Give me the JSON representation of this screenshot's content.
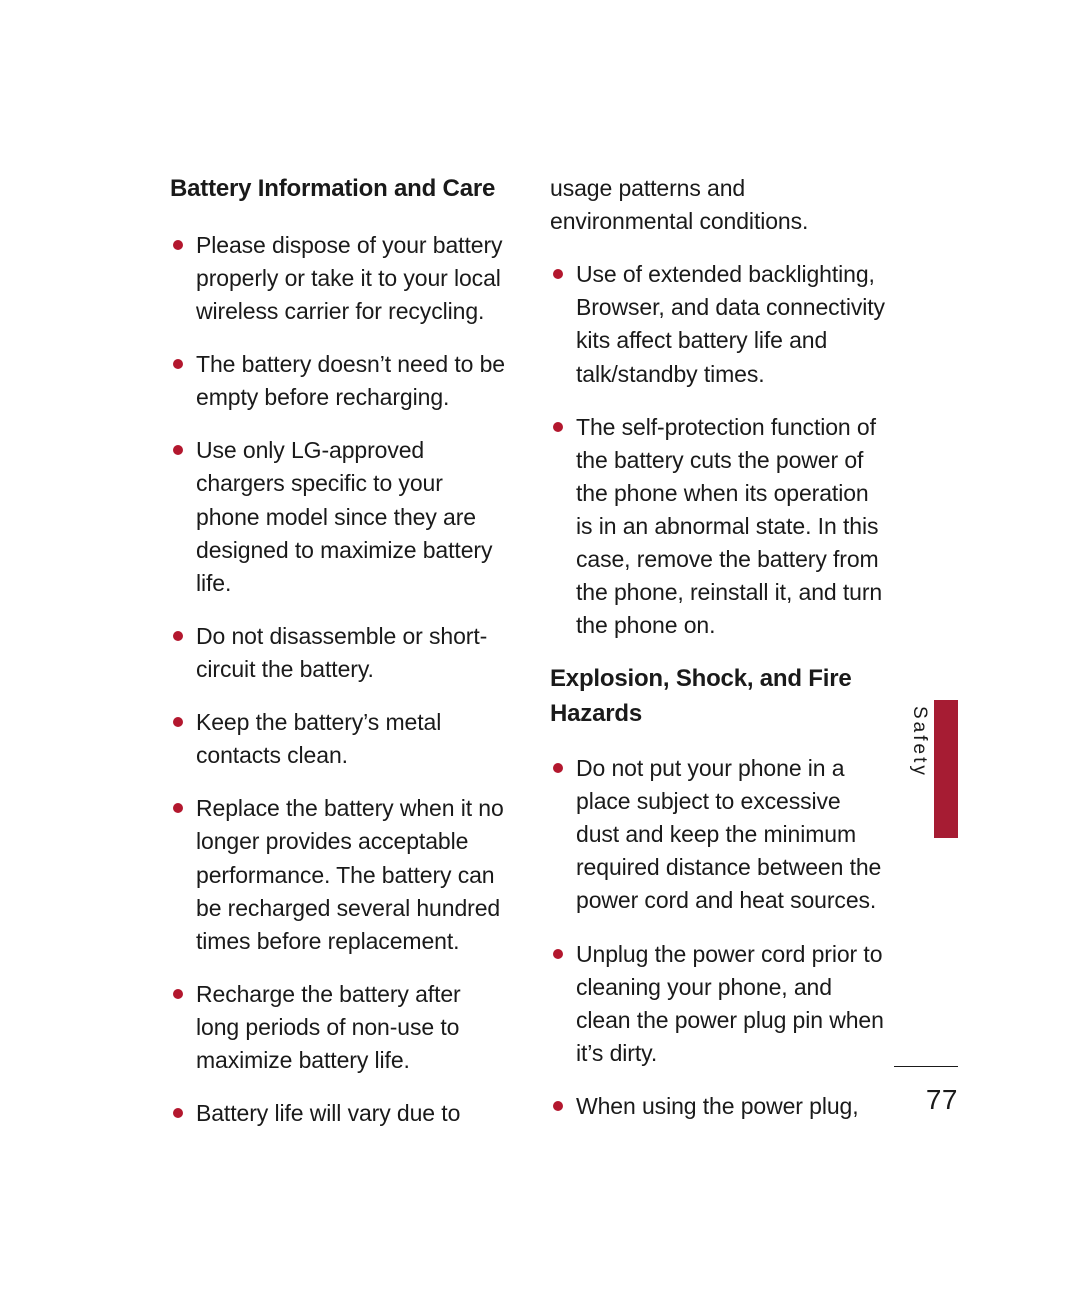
{
  "page_number": "77",
  "section_label": "Safety",
  "accent_color": "#a61c33",
  "bullet_color": "#b3172e",
  "text_color": "#1a1a1a",
  "background_color": "#ffffff",
  "columns": {
    "left": {
      "heading": "Battery Information and Care",
      "bullets": [
        "Please dispose of your battery properly or take it to your local wireless carrier for recycling.",
        "The battery doesn’t need to be empty before recharging.",
        "Use only LG-approved chargers specific to your phone model since they are designed to maximize battery life.",
        "Do not disassemble or short-circuit the battery.",
        "Keep the battery’s metal contacts clean.",
        "Replace the battery when it no longer provides acceptable performance. The battery can be recharged several hundred times before replacement.",
        "Recharge the battery after long periods of non-use to maximize battery life.",
        "Battery life will vary due to"
      ]
    },
    "right": {
      "continuation": "usage patterns and environmental conditions.",
      "bullets_top": [
        "Use of extended backlighting, Browser, and data connectivity kits affect battery life and talk/standby times.",
        "The self-protection function of the battery cuts the power of the phone when its operation is in an abnormal state. In this case, remove the battery from the phone, reinstall it, and turn the phone on."
      ],
      "heading": "Explosion, Shock, and Fire Hazards",
      "bullets_bottom": [
        "Do not put your phone in a place subject to excessive dust and keep the minimum required distance between the power cord and heat sources.",
        "Unplug the power cord prior to cleaning your phone, and clean the power plug pin when it’s dirty.",
        "When using the power plug,"
      ]
    }
  }
}
